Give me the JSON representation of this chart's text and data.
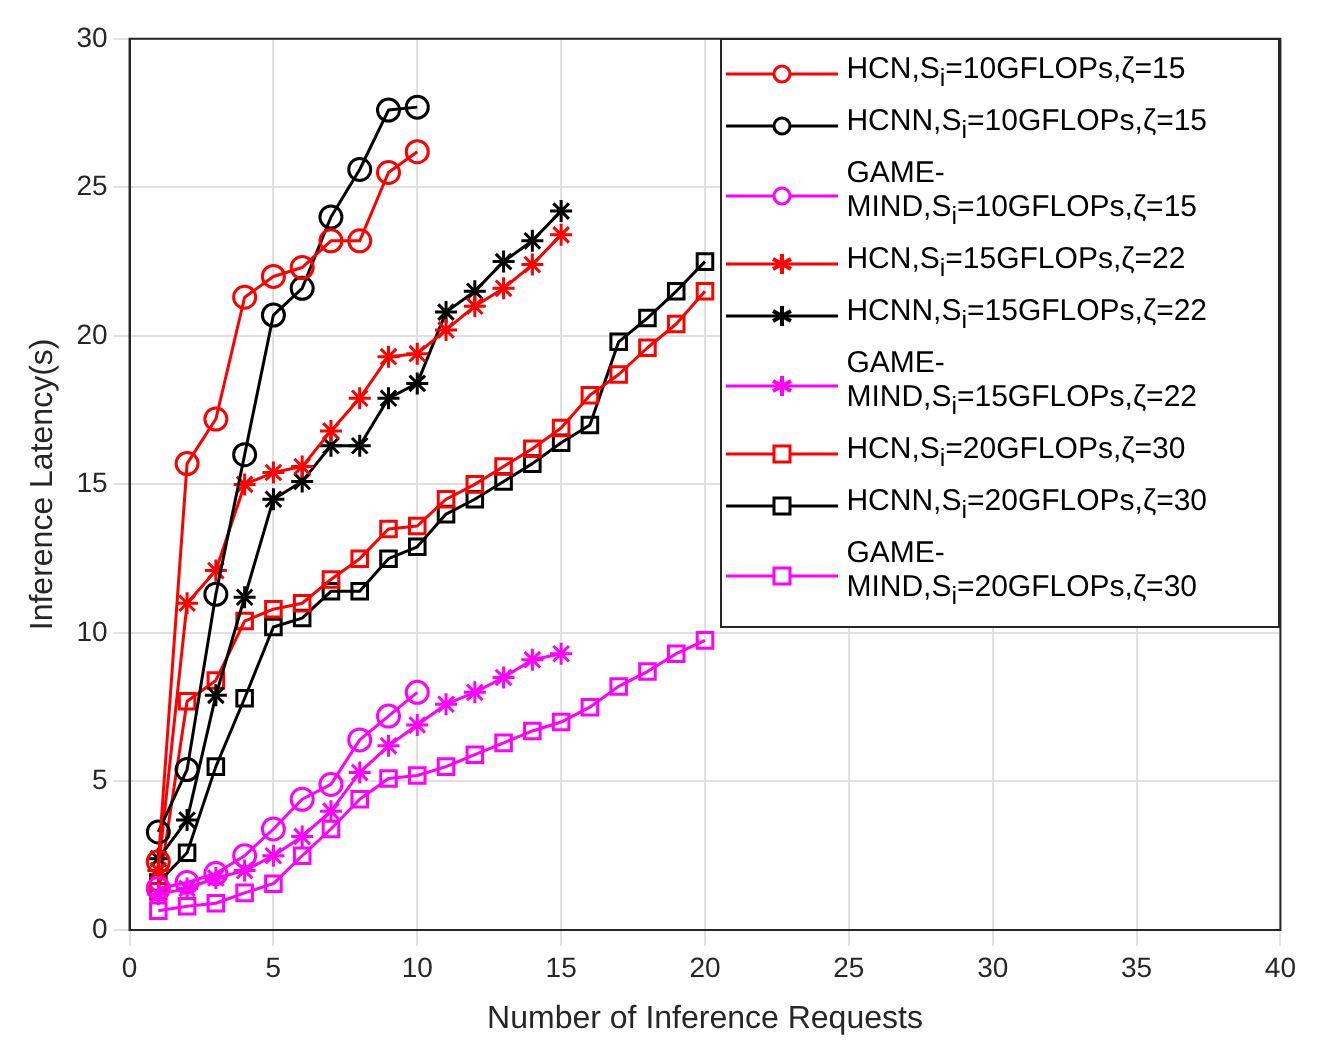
{
  "chart_data": {
    "type": "line",
    "xlabel": "Number of Inference Requests",
    "ylabel": "Inference Latency(s)",
    "xlim": [
      0,
      40
    ],
    "xticks": [
      0,
      5,
      10,
      15,
      20,
      25,
      30,
      35,
      40
    ],
    "ylim": [
      0,
      30
    ],
    "yticks": [
      0,
      5,
      10,
      15,
      20,
      25,
      30
    ],
    "grid": true,
    "legend": "top right",
    "series": [
      {
        "name": "HCN,S$_{i}$=10GFLOPs,ζ=15",
        "color": "#ff0000",
        "marker": "circle",
        "x": [
          1,
          2,
          3,
          4,
          5,
          6,
          7,
          8,
          9,
          10
        ],
        "values": [
          2.3,
          15.7,
          17.2,
          21.3,
          22.0,
          22.3,
          23.2,
          23.2,
          25.5,
          26.2
        ]
      },
      {
        "name": "HCNN,S$_{i}$=10GFLOPs,ζ=15",
        "color": "#000000",
        "marker": "circle",
        "x": [
          1,
          2,
          3,
          4,
          5,
          6,
          7,
          8,
          9,
          10
        ],
        "values": [
          3.3,
          5.4,
          11.3,
          16.0,
          20.7,
          21.6,
          24.0,
          25.6,
          27.6,
          27.7
        ]
      },
      {
        "name": "GAME-MIND,S$_{i}$=10GFLOPs,ζ=15",
        "color": "#ff00ff",
        "marker": "circle",
        "x": [
          1,
          2,
          3,
          4,
          5,
          6,
          7,
          8,
          9,
          10
        ],
        "values": [
          1.4,
          1.6,
          1.9,
          2.5,
          3.4,
          4.4,
          4.9,
          6.4,
          7.2,
          8.0
        ]
      },
      {
        "name": "HCN,S$_{i}$=15GFLOPs,ζ=22",
        "color": "#ff0000",
        "marker": "cross",
        "x": [
          1,
          2,
          3,
          4,
          5,
          6,
          7,
          8,
          9,
          10,
          11,
          12,
          13,
          14,
          15
        ],
        "values": [
          2.0,
          11.0,
          12.1,
          15.0,
          15.4,
          15.6,
          16.8,
          17.9,
          19.3,
          19.4,
          20.2,
          21.0,
          21.6,
          22.4,
          23.4
        ]
      },
      {
        "name": "HCNN,S$_{i}$=15GFLOPs,ζ=22",
        "color": "#000000",
        "marker": "cross",
        "x": [
          1,
          2,
          3,
          4,
          5,
          6,
          7,
          8,
          9,
          10,
          11,
          12,
          13,
          14,
          15
        ],
        "values": [
          2.4,
          3.7,
          7.9,
          11.2,
          14.5,
          15.1,
          16.3,
          16.3,
          17.9,
          18.4,
          20.8,
          21.5,
          22.5,
          23.2,
          24.2
        ]
      },
      {
        "name": "GAME-MIND,S$_{i}$=15GFLOPs,ζ=22",
        "color": "#ff00ff",
        "marker": "cross",
        "x": [
          1,
          2,
          3,
          4,
          5,
          6,
          7,
          8,
          9,
          10,
          11,
          12,
          13,
          14,
          15
        ],
        "values": [
          1.2,
          1.4,
          1.75,
          2.0,
          2.5,
          3.15,
          4.0,
          5.3,
          6.2,
          6.9,
          7.6,
          8.0,
          8.5,
          9.1,
          9.3
        ]
      },
      {
        "name": "HCN,S$_{i}$=20GFLOPs,ζ=30",
        "color": "#ff0000",
        "marker": "square",
        "x": [
          1,
          2,
          3,
          4,
          5,
          6,
          7,
          8,
          9,
          10,
          11,
          12,
          13,
          14,
          15,
          16,
          17,
          18,
          19,
          20
        ],
        "values": [
          1.3,
          7.7,
          8.4,
          10.4,
          10.8,
          11.0,
          11.8,
          12.5,
          13.5,
          13.6,
          14.5,
          15.0,
          15.6,
          16.2,
          16.9,
          18.0,
          18.7,
          19.6,
          20.4,
          21.5
        ]
      },
      {
        "name": "HCNN,S$_{i}$=20GFLOPs,ζ=30",
        "color": "#000000",
        "marker": "square",
        "x": [
          1,
          2,
          3,
          4,
          5,
          6,
          7,
          8,
          9,
          10,
          11,
          12,
          13,
          14,
          15,
          16,
          17,
          18,
          19,
          20
        ],
        "values": [
          1.6,
          2.6,
          5.5,
          7.8,
          10.2,
          10.5,
          11.4,
          11.4,
          12.5,
          12.9,
          14.0,
          14.5,
          15.1,
          15.7,
          16.4,
          17.0,
          19.8,
          20.6,
          21.5,
          22.5
        ]
      },
      {
        "name": "GAME-MIND,S$_{i}$=20GFLOPs,ζ=30",
        "color": "#ff00ff",
        "marker": "square",
        "x": [
          1,
          2,
          3,
          4,
          5,
          6,
          7,
          8,
          9,
          10,
          11,
          12,
          13,
          14,
          15,
          16,
          17,
          18,
          19,
          20
        ],
        "values": [
          0.65,
          0.8,
          0.9,
          1.25,
          1.56,
          2.5,
          3.4,
          4.4,
          5.1,
          5.2,
          5.5,
          5.9,
          6.3,
          6.7,
          7.0,
          7.5,
          8.2,
          8.7,
          9.3,
          9.75
        ]
      }
    ]
  }
}
